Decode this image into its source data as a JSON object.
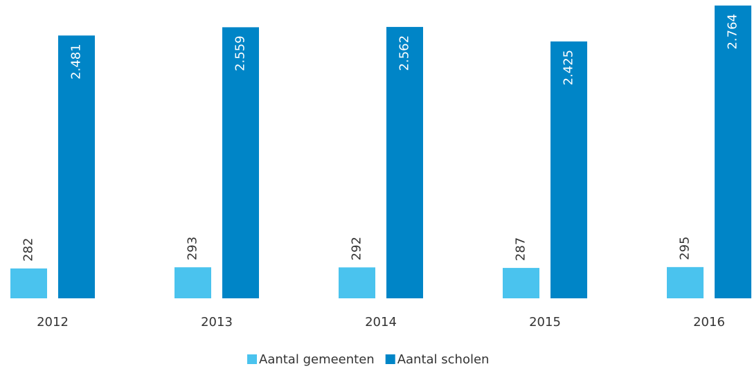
{
  "chart_data": {
    "type": "bar",
    "categories": [
      "2012",
      "2013",
      "2014",
      "2015",
      "2016"
    ],
    "series": [
      {
        "name": "Aantal gemeenten",
        "color": "#4ac3ee",
        "values": [
          282,
          293,
          292,
          287,
          295
        ]
      },
      {
        "name": "Aantal scholen",
        "color": "#0085c7",
        "values": [
          2481,
          2559,
          2562,
          2425,
          2764
        ],
        "value_labels": [
          "2.481",
          "2.559",
          "2.562",
          "2.425",
          "2.764"
        ]
      }
    ]
  }
}
